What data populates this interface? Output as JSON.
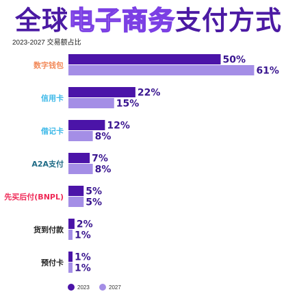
{
  "title": {
    "part1": "全球",
    "part2": "电子商务",
    "part3": "支付方式"
  },
  "subtitle": "2023-2027 交易额占比",
  "colors": {
    "series_2023": "#4b14a8",
    "series_2027": "#a48ee6",
    "labels": [
      "#f28a5a",
      "#3bb8e8",
      "#3bb8e8",
      "#1f6b86",
      "#ef2a57",
      "#222222",
      "#222222"
    ]
  },
  "chart_data": {
    "type": "bar",
    "orientation": "horizontal",
    "categories": [
      "数字钱包",
      "信用卡",
      "借记卡",
      "A2A支付",
      "先买后付(BNPL)",
      "货到付款",
      "预付卡"
    ],
    "series": [
      {
        "name": "2023",
        "values": [
          50,
          22,
          12,
          7,
          5,
          2,
          1
        ]
      },
      {
        "name": "2027",
        "values": [
          61,
          15,
          8,
          8,
          5,
          1,
          1
        ]
      }
    ],
    "value_suffix": "%",
    "legend": [
      "2023",
      "2027"
    ],
    "legend_position": "bottom-left",
    "grid": false
  }
}
